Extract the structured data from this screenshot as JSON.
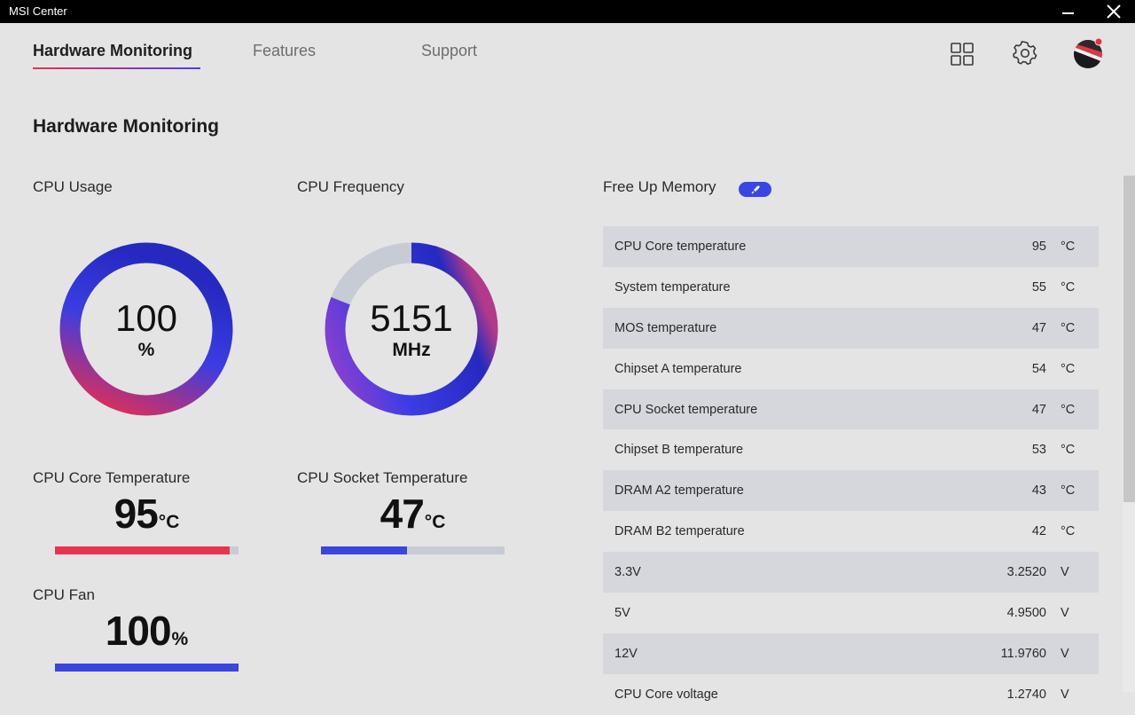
{
  "window": {
    "title": "MSI Center"
  },
  "nav": {
    "tabs": [
      "Hardware Monitoring",
      "Features",
      "Support"
    ],
    "active_index": 0
  },
  "header_icons": [
    "grid-icon",
    "gear-icon",
    "user-avatar"
  ],
  "page": {
    "title": "Hardware Monitoring"
  },
  "cpu_usage": {
    "label": "CPU Usage",
    "value": "100",
    "unit": "%",
    "fraction": 1.0
  },
  "cpu_frequency": {
    "label": "CPU Frequency",
    "value": "5151",
    "unit": "MHz",
    "fraction": 0.81
  },
  "cpu_core_temp": {
    "label": "CPU Core Temperature",
    "value": "95",
    "unit": "°C",
    "fraction": 0.95,
    "color": "#ea3350"
  },
  "cpu_socket_temp": {
    "label": "CPU Socket Temperature",
    "value": "47",
    "unit": "°C",
    "fraction": 0.47,
    "color": "#3a45e0"
  },
  "cpu_fan": {
    "label": "CPU Fan",
    "value": "100",
    "unit": "%",
    "fraction": 1.0,
    "color": "#3a45e0"
  },
  "memory": {
    "label": "Free Up Memory"
  },
  "sensors": [
    {
      "name": "CPU Core temperature",
      "value": "95",
      "unit": "°C"
    },
    {
      "name": "System temperature",
      "value": "55",
      "unit": "°C"
    },
    {
      "name": "MOS temperature",
      "value": "47",
      "unit": "°C"
    },
    {
      "name": "Chipset A temperature",
      "value": "54",
      "unit": "°C"
    },
    {
      "name": "CPU Socket temperature",
      "value": "47",
      "unit": "°C"
    },
    {
      "name": "Chipset B temperature",
      "value": "53",
      "unit": "°C"
    },
    {
      "name": "DRAM A2 temperature",
      "value": "43",
      "unit": "°C"
    },
    {
      "name": "DRAM B2 temperature",
      "value": "42",
      "unit": "°C"
    },
    {
      "name": "3.3V",
      "value": "3.2520",
      "unit": "V"
    },
    {
      "name": "5V",
      "value": "4.9500",
      "unit": "V"
    },
    {
      "name": "12V",
      "value": "11.9760",
      "unit": "V"
    },
    {
      "name": "CPU Core voltage",
      "value": "1.2740",
      "unit": "V"
    }
  ],
  "colors": {
    "accent_red": "#ea2d55",
    "accent_blue": "#3a45e6",
    "track": "#c7cbd3",
    "row_shade": "#d6d7dc"
  }
}
